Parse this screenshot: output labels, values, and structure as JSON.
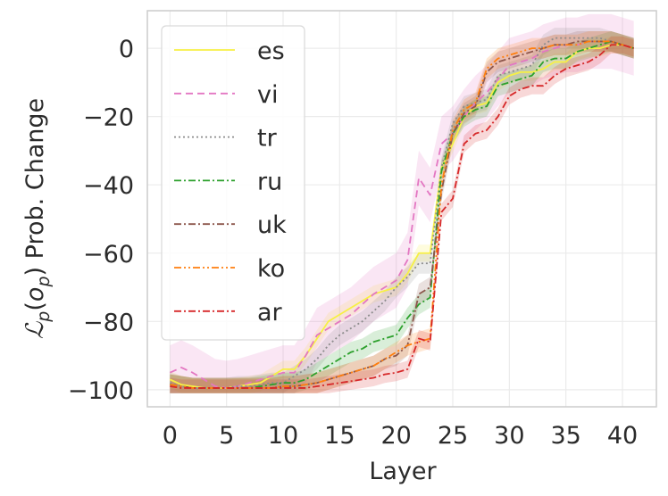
{
  "chart_data": {
    "type": "line",
    "xlabel": "Layer",
    "ylabel_main": "ℒ",
    "ylabel_sub1": "p",
    "ylabel_open": "(",
    "ylabel_o": "o",
    "ylabel_sub2": "p",
    "ylabel_rest": ") Prob. Change",
    "xlim": [
      -2,
      43
    ],
    "ylim": [
      -105,
      11
    ],
    "xticks": [
      0,
      5,
      10,
      15,
      20,
      25,
      30,
      35,
      40
    ],
    "yticks": [
      0,
      -20,
      -40,
      -60,
      -80,
      -100
    ],
    "xtick_labels": [
      "0",
      "5",
      "10",
      "15",
      "20",
      "25",
      "30",
      "35",
      "40"
    ],
    "ytick_labels": [
      "0",
      "−20",
      "−40",
      "−60",
      "−80",
      "−100"
    ],
    "grid": true,
    "legend_position": "top-left",
    "x": [
      0,
      1,
      2,
      3,
      4,
      5,
      6,
      7,
      8,
      9,
      10,
      11,
      12,
      13,
      14,
      15,
      16,
      17,
      18,
      19,
      20,
      21,
      22,
      23,
      24,
      25,
      26,
      27,
      28,
      29,
      30,
      31,
      32,
      33,
      34,
      35,
      36,
      37,
      38,
      39,
      40,
      41
    ],
    "series": [
      {
        "name": "es",
        "color": "#f7f045",
        "dash": "solid",
        "band": 2.5,
        "values": [
          -97,
          -98.5,
          -99,
          -99.5,
          -99.5,
          -99.5,
          -99,
          -98.5,
          -98,
          -96,
          -94,
          -94,
          -90,
          -85,
          -80,
          -78,
          -76,
          -74,
          -72,
          -71,
          -70,
          -66,
          -60,
          -60,
          -35,
          -28,
          -20,
          -17,
          -16,
          -10,
          -8,
          -7,
          -7,
          -6,
          -4,
          -4,
          -1,
          0,
          0,
          1,
          1,
          0
        ]
      },
      {
        "name": "vi",
        "color": "#e377c2",
        "dash": "8,5",
        "band": 8,
        "values": [
          -95,
          -93.5,
          -95,
          -97,
          -99,
          -99.5,
          -99,
          -98,
          -97,
          -96,
          -95,
          -95,
          -90,
          -84,
          -82,
          -80,
          -78,
          -75,
          -72,
          -70,
          -68,
          -62,
          -38,
          -43,
          -28,
          -25,
          -20,
          -16,
          -13,
          -9,
          -5,
          -4,
          -3,
          -1,
          0,
          1,
          1,
          2,
          2,
          2,
          1,
          0
        ]
      },
      {
        "name": "tr",
        "color": "#8c8c8c",
        "dash": "2,3",
        "band": 3,
        "values": [
          -98,
          -99,
          -99.5,
          -99.5,
          -99.5,
          -99.5,
          -99,
          -99,
          -98.5,
          -98,
          -98,
          -96,
          -94,
          -91,
          -87,
          -84,
          -82,
          -80,
          -77,
          -74,
          -70,
          -67,
          -63,
          -63,
          -35,
          -22,
          -17,
          -16,
          -15,
          -8,
          -7,
          -6,
          -5,
          1,
          3,
          3,
          3,
          3,
          3,
          2,
          1,
          0
        ]
      },
      {
        "name": "ru",
        "color": "#2ca02c",
        "dash": "8,3,2,3",
        "band": 3,
        "values": [
          -98.5,
          -99,
          -99.5,
          -99.5,
          -99.5,
          -99.5,
          -99.5,
          -99.5,
          -99,
          -98.5,
          -98,
          -98,
          -97,
          -95,
          -93,
          -91,
          -89,
          -88,
          -86,
          -85,
          -84,
          -79,
          -75,
          -73,
          -36,
          -25,
          -20,
          -18,
          -17,
          -11,
          -10,
          -9,
          -8,
          -4,
          -3,
          -3,
          -1,
          0,
          1,
          2,
          1,
          0
        ]
      },
      {
        "name": "uk",
        "color": "#8c564b",
        "dash": "8,3,2,3",
        "band": 3,
        "values": [
          -98.5,
          -99,
          -99.5,
          -99.5,
          -99.5,
          -99.5,
          -99.5,
          -99.5,
          -99.5,
          -99.5,
          -99,
          -99,
          -98.5,
          -98,
          -97,
          -96,
          -95,
          -94,
          -93,
          -91,
          -90,
          -87,
          -72,
          -70,
          -42,
          -25,
          -19,
          -17,
          -7,
          -4,
          -3,
          -2,
          -1,
          0,
          1,
          1,
          2,
          2,
          2,
          2,
          1,
          0
        ]
      },
      {
        "name": "ko",
        "color": "#ff7f0e",
        "dash": "8,3,2,3,2,3",
        "band": 3,
        "values": [
          -98.5,
          -99,
          -99.5,
          -99.5,
          -99.5,
          -99.5,
          -99.5,
          -99.5,
          -99.5,
          -99.5,
          -99,
          -99,
          -98.5,
          -98,
          -97,
          -96,
          -95,
          -94,
          -93,
          -91,
          -89,
          -87,
          -86,
          -85,
          -40,
          -24,
          -18,
          -16,
          -6,
          -3,
          -2,
          -1,
          0,
          0,
          1,
          1,
          1,
          2,
          2,
          2,
          1,
          0
        ]
      },
      {
        "name": "ar",
        "color": "#d62728",
        "dash": "8,3,2,3",
        "band": 2.5,
        "values": [
          -99,
          -99.5,
          -99.5,
          -99.5,
          -99.5,
          -99.5,
          -99.5,
          -99.5,
          -99.5,
          -99.5,
          -99.5,
          -99.5,
          -99.5,
          -99,
          -98.5,
          -98,
          -97.5,
          -97,
          -96.5,
          -95.5,
          -95,
          -94,
          -85,
          -86,
          -48,
          -44,
          -28,
          -25,
          -24,
          -20,
          -14,
          -12,
          -11,
          -11,
          -8,
          -6,
          -5,
          -4,
          -2,
          1,
          1,
          0
        ]
      }
    ]
  }
}
